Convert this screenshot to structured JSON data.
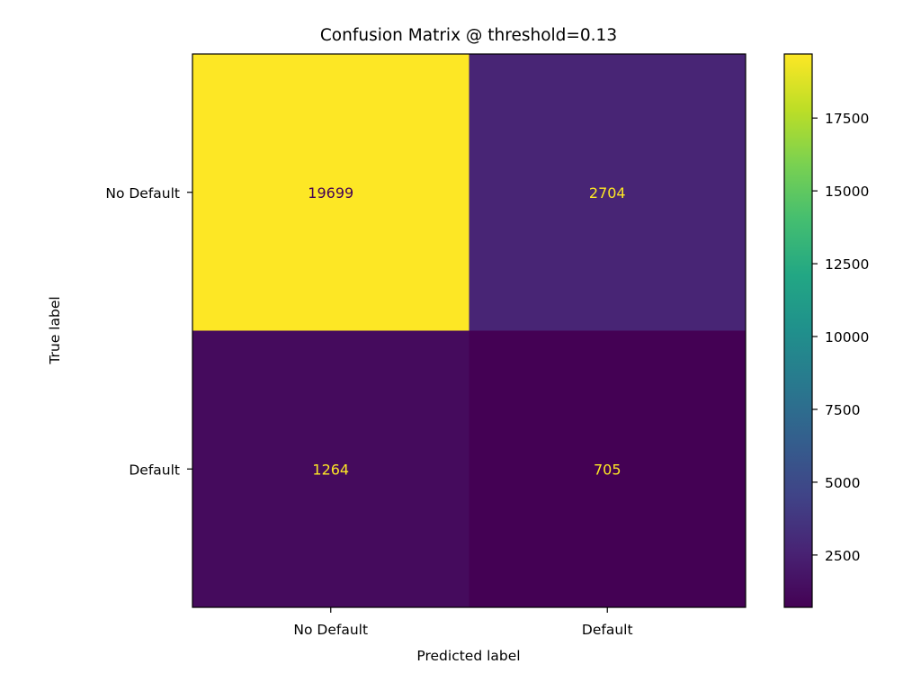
{
  "chart_data": {
    "type": "heatmap",
    "title": "Confusion Matrix @ threshold=0.13",
    "xlabel": "Predicted label",
    "ylabel": "True label",
    "x_categories": [
      "No Default",
      "Default"
    ],
    "y_categories": [
      "No Default",
      "Default"
    ],
    "values": [
      [
        19699,
        2704
      ],
      [
        1264,
        705
      ]
    ],
    "colormap": "viridis",
    "colorbar": {
      "vmin": 705,
      "vmax": 19699,
      "ticks": [
        2500,
        5000,
        7500,
        10000,
        12500,
        15000,
        17500
      ],
      "tick_labels": [
        "2500",
        "5000",
        "7500",
        "10000",
        "12500",
        "15000",
        "17500"
      ]
    },
    "text_colors": {
      "on_light": "#440154",
      "on_dark": "#fde725"
    },
    "grid": false
  }
}
